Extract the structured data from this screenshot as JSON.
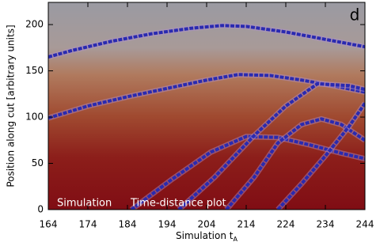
{
  "chart_data": {
    "type": "line",
    "panel_label": "d",
    "annotations": [
      "Simulation",
      "Time-distance plot"
    ],
    "x_label": "Simulation t",
    "x_label_subscript": "A",
    "y_label": "Position along cut [arbitrary units]",
    "xlim": [
      164,
      244
    ],
    "ylim": [
      0,
      224
    ],
    "xticks": [
      164,
      174,
      184,
      194,
      204,
      214,
      224,
      234,
      244
    ],
    "yticks": [
      0,
      50,
      100,
      150,
      200
    ],
    "series": [
      {
        "color": "#2a2ab0",
        "x": [
          164,
          170,
          180,
          190,
          200,
          208,
          214,
          224,
          234,
          244
        ],
        "values": [
          165,
          172,
          182,
          190,
          196,
          199,
          198,
          192,
          184,
          176
        ]
      },
      {
        "color": "#2a2ab0",
        "x": [
          164,
          174,
          184,
          194,
          204,
          212,
          220,
          228,
          236,
          244
        ],
        "values": [
          99,
          112,
          122,
          131,
          140,
          146,
          145,
          140,
          134,
          127
        ]
      },
      {
        "color": "#2a2ab0",
        "x": [
          185,
          195,
          205,
          214,
          222,
          230,
          238,
          244
        ],
        "values": [
          0,
          32,
          62,
          79,
          78,
          70,
          61,
          55
        ]
      },
      {
        "color": "#2a2ab0",
        "x": [
          197,
          206,
          216,
          224,
          232,
          240,
          244
        ],
        "values": [
          0,
          35,
          80,
          112,
          136,
          134,
          130
        ]
      },
      {
        "color": "#2a2ab0",
        "x": [
          209,
          216,
          222,
          228,
          233,
          238,
          244
        ],
        "values": [
          0,
          35,
          72,
          92,
          98,
          92,
          75
        ]
      },
      {
        "color": "#2a2ab0",
        "x": [
          222,
          228,
          234,
          240,
          244
        ],
        "values": [
          0,
          28,
          58,
          90,
          115
        ]
      }
    ]
  }
}
